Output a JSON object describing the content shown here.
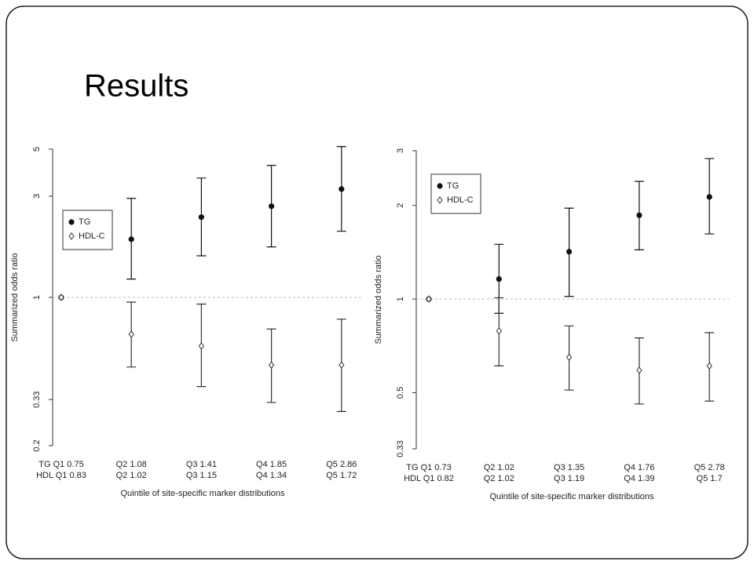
{
  "slide_title": "Results",
  "chart_data": [
    {
      "type": "errorbar",
      "y_label": "Summarized odds ratio",
      "x_label": "Quintile of site-specific marker distributions",
      "log_y": true,
      "ylim": [
        0.2,
        5
      ],
      "yticks": [
        0.2,
        0.33,
        1,
        3,
        5
      ],
      "refline": 1,
      "legend": "upper-left",
      "categories": [
        "TG Q1 0.75",
        "Q2 1.08",
        "Q3 1.41",
        "Q4 1.85",
        "Q5 2.86"
      ],
      "categories2": [
        "HDL Q1 0.83",
        "Q2 1.02",
        "Q3 1.15",
        "Q4 1.34",
        "Q5 1.72"
      ],
      "series": [
        {
          "name": "TG",
          "color": "#111111",
          "marker": "dot",
          "values": [
            1,
            1.88,
            2.39,
            2.69,
            3.24
          ],
          "lower": [
            null,
            1.22,
            1.57,
            1.73,
            2.05
          ],
          "upper": [
            null,
            2.93,
            3.65,
            4.19,
            5.14
          ]
        },
        {
          "name": "HDL-C",
          "color": "#333333",
          "marker": "diamond",
          "values": [
            1,
            0.67,
            0.59,
            0.48,
            0.48
          ],
          "lower": [
            null,
            0.47,
            0.38,
            0.32,
            0.29
          ],
          "upper": [
            null,
            0.95,
            0.93,
            0.71,
            0.79
          ]
        }
      ]
    },
    {
      "type": "errorbar",
      "y_label": "Summarized odds ratio",
      "x_label": "Quintile of site-specific marker distributions",
      "log_y": true,
      "ylim": [
        0.33,
        3
      ],
      "yticks": [
        0.33,
        0.5,
        1,
        2,
        3
      ],
      "refline": 1,
      "legend": "upper-left",
      "categories": [
        "TG Q1 0.73",
        "Q2 1.02",
        "Q3 1.35",
        "Q4 1.76",
        "Q5 2.78"
      ],
      "categories2": [
        "HDL Q1 0.82",
        "Q2 1.02",
        "Q3 1.19",
        "Q4 1.39",
        "Q5 1.7"
      ],
      "series": [
        {
          "name": "TG",
          "color": "#111111",
          "marker": "dot",
          "values": [
            1,
            1.16,
            1.42,
            1.86,
            2.13
          ],
          "lower": [
            null,
            0.9,
            1.02,
            1.44,
            1.62
          ],
          "upper": [
            null,
            1.5,
            1.96,
            2.39,
            2.83
          ]
        },
        {
          "name": "HDL-C",
          "color": "#333333",
          "marker": "diamond",
          "values": [
            1,
            0.79,
            0.65,
            0.59,
            0.61
          ],
          "lower": [
            null,
            0.61,
            0.51,
            0.46,
            0.47
          ],
          "upper": [
            null,
            1.01,
            0.82,
            0.75,
            0.78
          ]
        }
      ]
    }
  ]
}
